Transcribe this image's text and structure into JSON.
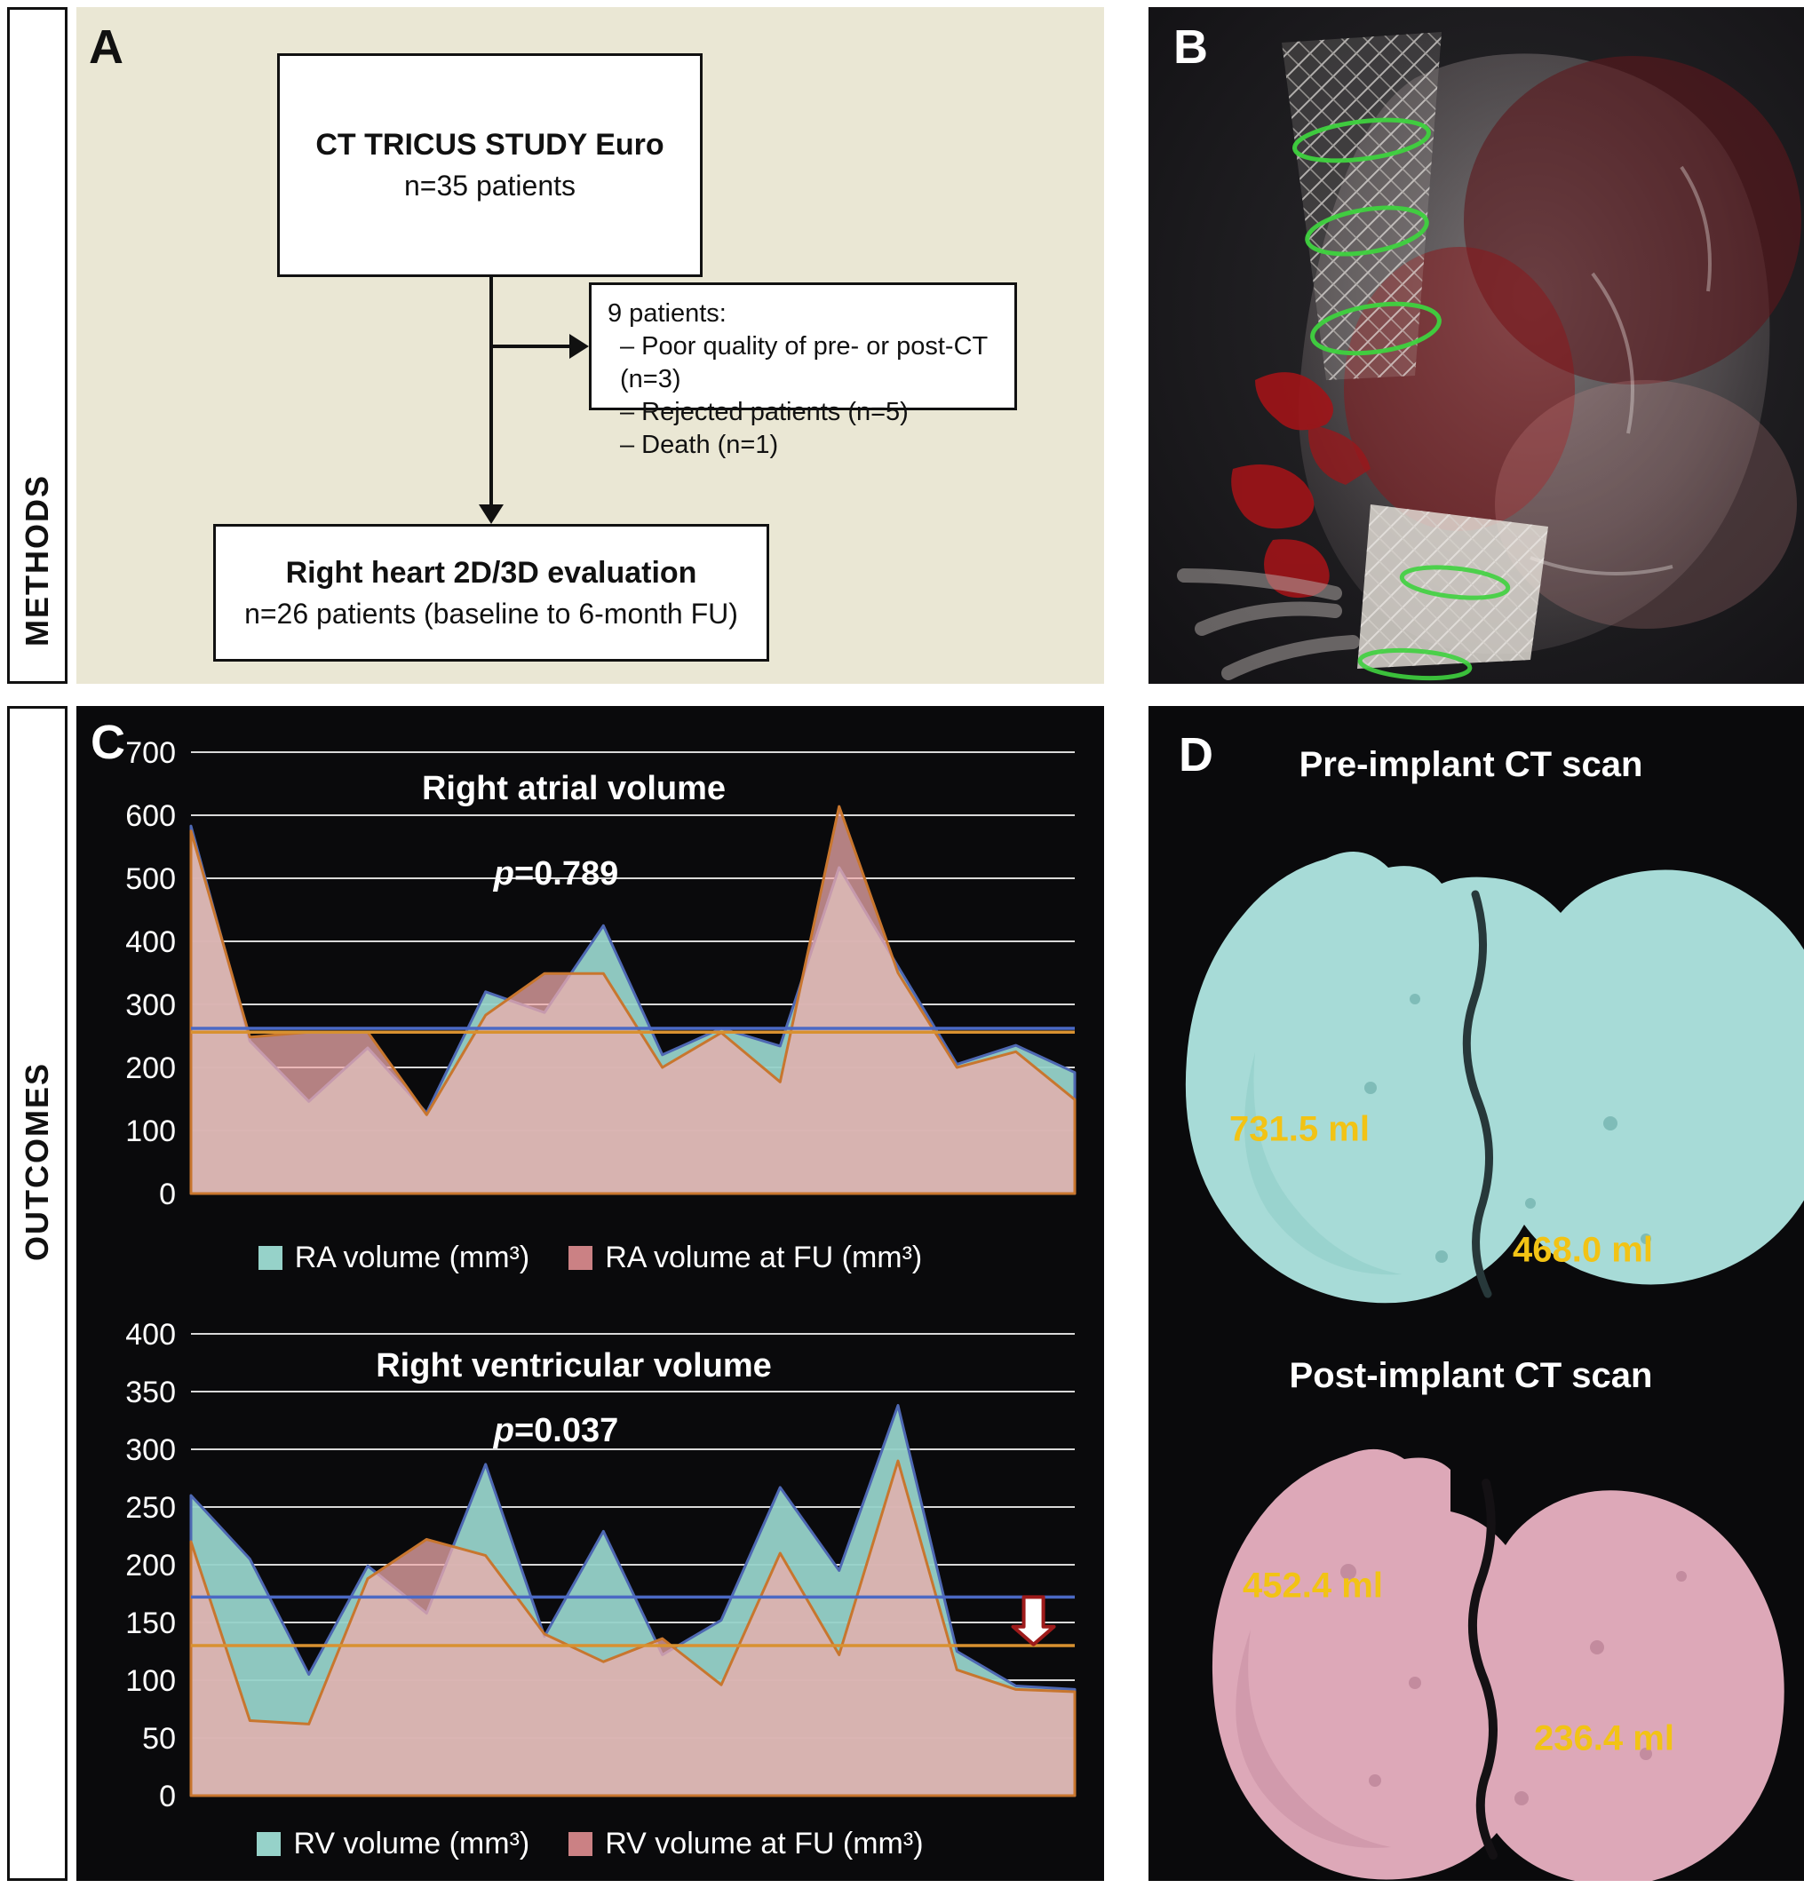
{
  "methods": {
    "panel_label": "A",
    "sidebar_label": "METHODS",
    "box_top": {
      "title": "CT TRICUS STUDY Euro",
      "subtitle": "n=35 patients"
    },
    "box_exclusion": {
      "header": "9 patients:",
      "items": [
        "– Poor quality of pre- or post-CT (n=3)",
        "– Rejected patients (n=5)",
        "– Death (n=1)"
      ]
    },
    "box_bottom": {
      "title": "Right heart 2D/3D evaluation",
      "subtitle": "n=26 patients (baseline to 6-month FU)"
    }
  },
  "outcomes": {
    "sidebar_label": "OUTCOMES",
    "panel_label": "C"
  },
  "panel_b": {
    "label": "B"
  },
  "panel_d": {
    "label": "D",
    "pre": {
      "title": "Pre-implant CT scan",
      "volume_left": "731.5 ml",
      "volume_right": "468.0 ml"
    },
    "post": {
      "title": "Post-implant CT scan",
      "volume_left": "452.4 ml",
      "volume_right": "236.4 ml"
    },
    "volume_color": "#f2c315"
  },
  "chart_data": [
    {
      "type": "area",
      "title": "Right atrial volume",
      "p_italic": "p",
      "p_rest": "=0.789",
      "x": [
        1,
        2,
        3,
        4,
        5,
        6,
        7,
        8,
        9,
        10,
        11,
        12,
        13,
        14,
        15,
        16
      ],
      "xlabel": "",
      "ylabel": "",
      "ylim": [
        0,
        700
      ],
      "ytick_step": 100,
      "grid": true,
      "legend_position": "bottom",
      "series": [
        {
          "name": "RA volume (mm³)",
          "values": [
            583,
            242,
            146,
            231,
            128,
            320,
            287,
            425,
            220,
            262,
            234,
            517,
            360,
            205,
            235,
            192
          ],
          "mean": 262,
          "fill": "rgba(150,210,201,0.95)",
          "line": "#4e68b3",
          "mean_color": "#4b69c4",
          "legend_swatch": "#96d2c9"
        },
        {
          "name": "RA volume at FU (mm³)",
          "values": [
            575,
            248,
            256,
            256,
            125,
            283,
            349,
            349,
            200,
            255,
            177,
            614,
            350,
            200,
            225,
            149
          ],
          "mean": 256,
          "fill": "rgba(240,172,172,0.74)",
          "line": "#c8762e",
          "mean_color": "#d89130",
          "legend_swatch": "#cb8184"
        }
      ]
    },
    {
      "type": "area",
      "title": "Right ventricular volume",
      "p_italic": "p",
      "p_rest": "=0.037",
      "x": [
        1,
        2,
        3,
        4,
        5,
        6,
        7,
        8,
        9,
        10,
        11,
        12,
        13,
        14,
        15,
        16
      ],
      "xlabel": "",
      "ylabel": "",
      "ylim": [
        0,
        400
      ],
      "ytick_step": 50,
      "grid": true,
      "legend_position": "bottom",
      "annotation_arrow": {
        "x_index": 14.3,
        "value_top": 172,
        "value_bottom": 131
      },
      "series": [
        {
          "name": "RV volume (mm³)",
          "values": [
            260,
            205,
            105,
            199,
            158,
            287,
            138,
            229,
            122,
            152,
            267,
            195,
            338,
            125,
            95,
            92
          ],
          "mean": 172,
          "fill": "rgba(150,210,201,0.95)",
          "line": "#4e68b3",
          "mean_color": "#4b69c4",
          "legend_swatch": "#96d2c9"
        },
        {
          "name": "RV volume at FU (mm³)",
          "values": [
            220,
            65,
            62,
            188,
            222,
            208,
            140,
            116,
            136,
            96,
            210,
            122,
            290,
            109,
            92,
            90
          ],
          "mean": 130,
          "fill": "rgba(240,172,172,0.74)",
          "line": "#c8762e",
          "mean_color": "#d89130",
          "legend_swatch": "#cb8184"
        }
      ]
    }
  ]
}
